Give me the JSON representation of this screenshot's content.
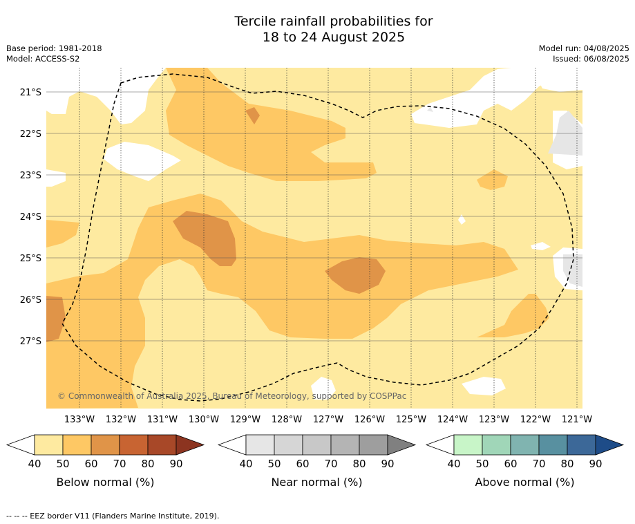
{
  "title_line1": "Tercile rainfall probabilities for",
  "title_line2": "18 to 24 August 2025",
  "base_period": "Base period: 1981-2018",
  "model": "Model: ACCESS-S2",
  "model_run": "Model run: 04/08/2025",
  "issued": "Issued: 06/08/2025",
  "copyright": "© Commonwealth of Australia 2025, Bureau of Meteorology, supported by COSPPac",
  "latitudes": [
    "21°S",
    "22°S",
    "23°S",
    "24°S",
    "25°S",
    "26°S",
    "27°S"
  ],
  "longitudes": [
    "133°W",
    "132°W",
    "131°W",
    "130°W",
    "129°W",
    "128°W",
    "127°W",
    "126°W",
    "125°W",
    "124°W",
    "123°W",
    "122°W",
    "121°W"
  ],
  "colorbars": [
    {
      "label": "Below normal (%)",
      "ticks": [
        "40",
        "50",
        "60",
        "70",
        "80",
        "90"
      ],
      "colors": [
        "#ffffff",
        "#feeaa0",
        "#fec864",
        "#e09448",
        "#c86432",
        "#a84828",
        "#8c3420"
      ]
    },
    {
      "label": "Near normal (%)",
      "ticks": [
        "40",
        "50",
        "60",
        "70",
        "80",
        "90"
      ],
      "colors": [
        "#ffffff",
        "#e6e6e6",
        "#d6d6d6",
        "#c8c8c8",
        "#b4b4b4",
        "#9e9e9e",
        "#808080"
      ]
    },
    {
      "label": "Above normal (%)",
      "ticks": [
        "40",
        "50",
        "60",
        "70",
        "80",
        "90"
      ],
      "colors": [
        "#ffffff",
        "#c8f5c8",
        "#a0d6b8",
        "#80b4b0",
        "#5890a0",
        "#3c6898",
        "#1e4c88"
      ]
    }
  ],
  "footer": "--  --  -- EEZ border V11 (Flanders Marine Institute, 2019).",
  "map_colors": {
    "below_40_50": "#feeaa0",
    "below_50_60": "#fec864",
    "below_60_70": "#e09448",
    "near_40_50": "#e6e6e6",
    "no_dominant": "#ffffff"
  }
}
